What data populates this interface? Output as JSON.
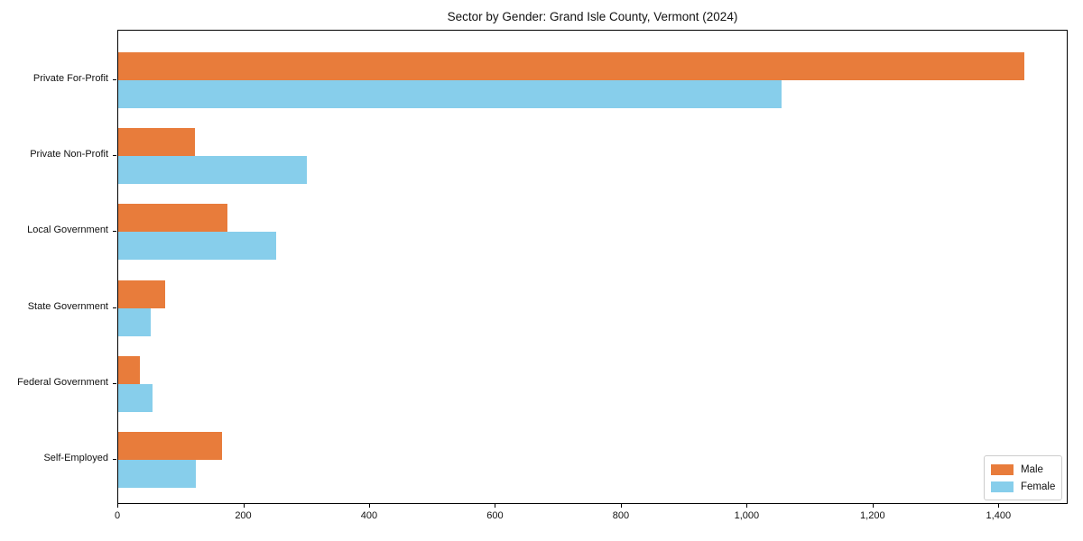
{
  "chart_data": {
    "type": "bar",
    "orientation": "horizontal",
    "title": "Sector by Gender: Grand Isle County, Vermont (2024)",
    "categories": [
      "Private For-Profit",
      "Private Non-Profit",
      "Local Government",
      "State Government",
      "Federal Government",
      "Self-Employed"
    ],
    "series": [
      {
        "name": "Male",
        "color": "#E87C3B",
        "values": [
          1440,
          122,
          174,
          75,
          35,
          165
        ]
      },
      {
        "name": "Female",
        "color": "#87CEEB",
        "values": [
          1054,
          300,
          251,
          52,
          55,
          123
        ]
      }
    ],
    "xlabel": "",
    "ylabel": "",
    "xlim": [
      0,
      1510
    ],
    "xticks": [
      0,
      200,
      400,
      600,
      800,
      1000,
      1200,
      1400
    ],
    "xtick_labels": [
      "0",
      "200",
      "400",
      "600",
      "800",
      "1,000",
      "1,200",
      "1,400"
    ],
    "grid": false,
    "legend_position": "lower right",
    "frame": "full-box"
  }
}
